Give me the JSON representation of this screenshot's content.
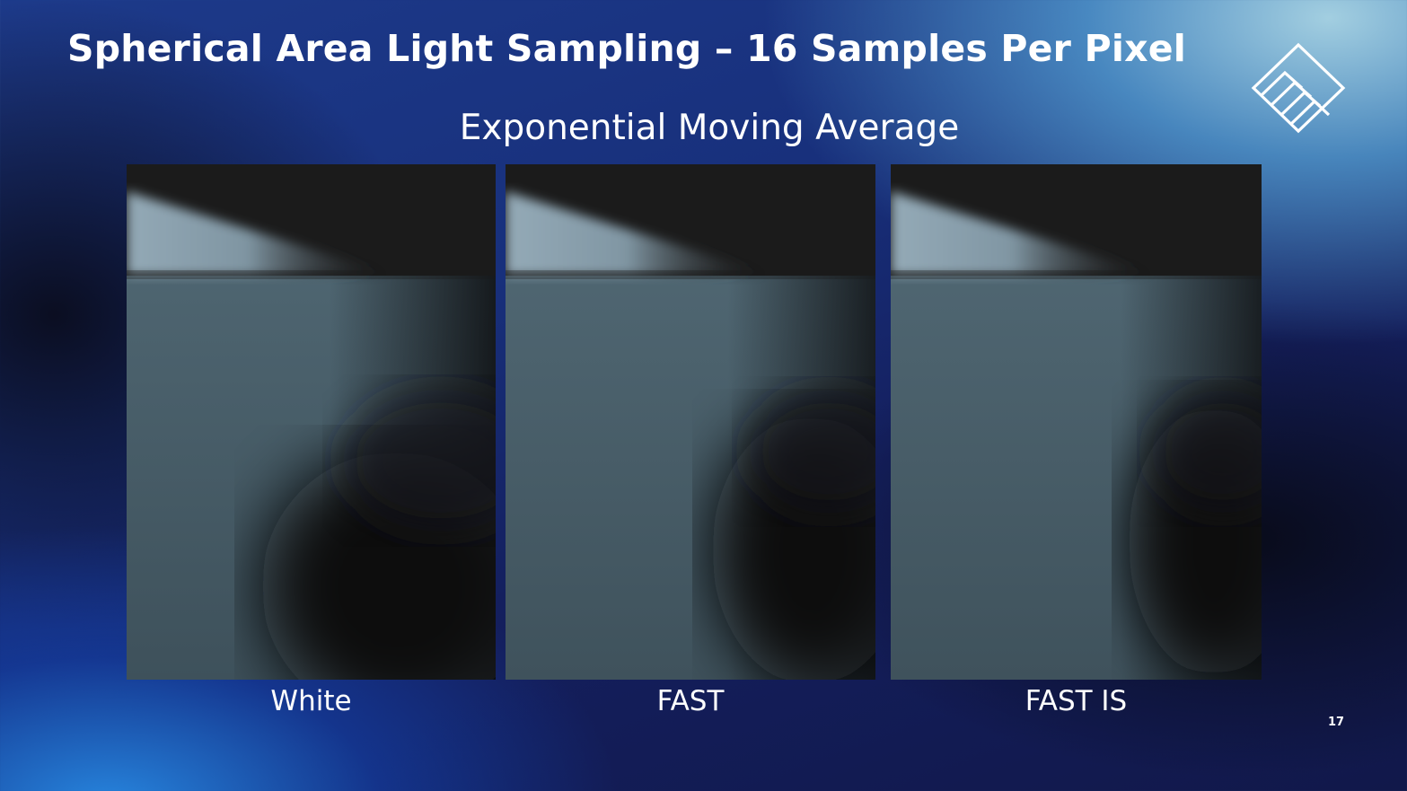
{
  "slide": {
    "title": "Spherical Area Light Sampling – 16 Samples Per Pixel",
    "subtitle": "Exponential Moving Average",
    "page_number": "17",
    "logo": "diamond-stripes-logo"
  },
  "panels": [
    {
      "caption": "White"
    },
    {
      "caption": "FAST"
    },
    {
      "caption": "FAST IS"
    }
  ],
  "colors": {
    "text": "#ffffff",
    "background_deep": "#11184a",
    "background_light": "#aad7e6",
    "render_wall": "#1b1b1b",
    "render_floor": "#455a66",
    "render_shadow": "#0c0d0f"
  }
}
